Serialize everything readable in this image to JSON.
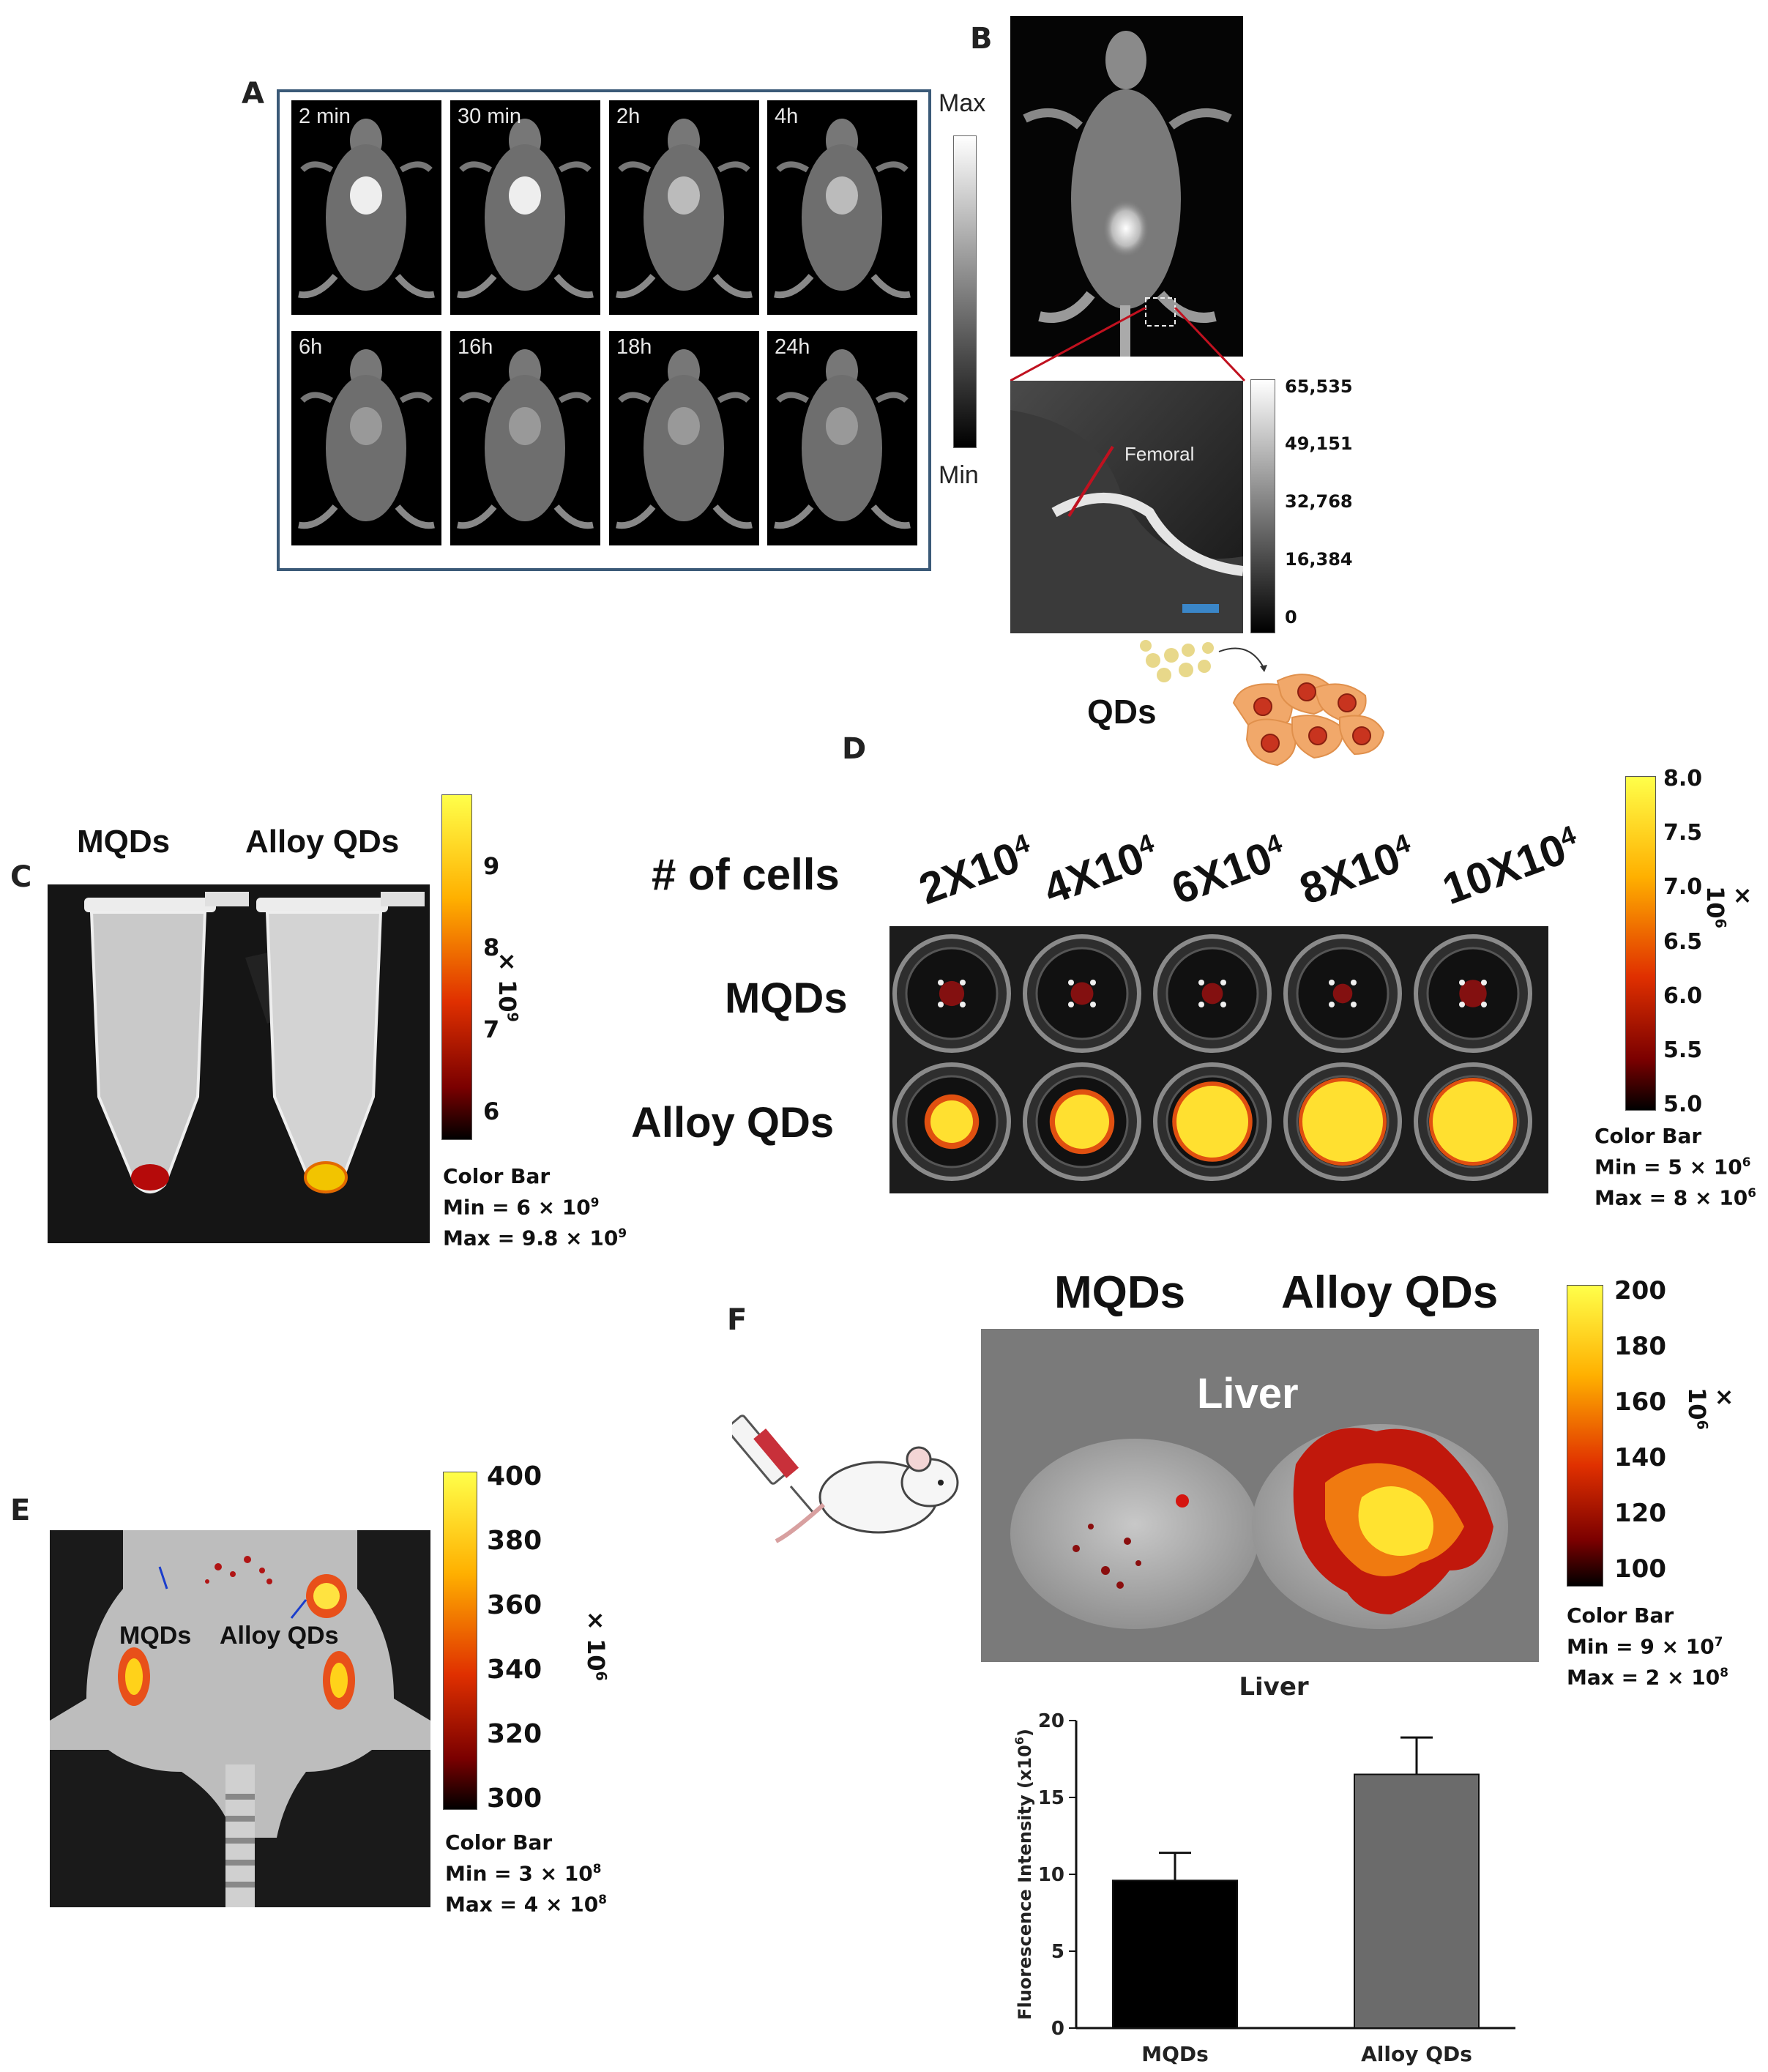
{
  "panels": {
    "A": {
      "letter": "A",
      "timepoints": [
        "2 min",
        "30 min",
        "2h",
        "4h",
        "6h",
        "16h",
        "18h",
        "24h"
      ],
      "scale_max": "Max",
      "scale_min": "Min"
    },
    "B": {
      "letter": "B",
      "vessel_label": "Femoral",
      "colorbar_ticks": [
        "65,535",
        "49,151",
        "32,768",
        "16,384",
        "0"
      ],
      "qds_label": "QDs"
    },
    "C": {
      "letter": "C",
      "col_labels": [
        "MQDs",
        "Alloy QDs"
      ],
      "colorbar_ticks": [
        "9",
        "8",
        "7",
        "6"
      ],
      "multiplier": "× 10",
      "multiplier_exp": "9",
      "cb_title": "Color Bar",
      "cb_min": "Min = 6 × 10",
      "cb_min_exp": "9",
      "cb_max": "Max = 9.8 × 10",
      "cb_max_exp": "9"
    },
    "D": {
      "letter": "D",
      "row_header": "# of cells",
      "col_labels": [
        "2X10",
        "4X10",
        "6X10",
        "8X10",
        "10X10"
      ],
      "col_exp": "4",
      "row_labels": [
        "MQDs",
        "Alloy QDs"
      ],
      "colorbar_ticks": [
        "8.0",
        "7.5",
        "7.0",
        "6.5",
        "6.0",
        "5.5",
        "5.0"
      ],
      "multiplier": "× 10",
      "multiplier_exp": "6",
      "cb_title": "Color Bar",
      "cb_min": "Min = 5 × 10",
      "cb_min_exp": "6",
      "cb_max": "Max = 8 × 10",
      "cb_max_exp": "6"
    },
    "E": {
      "letter": "E",
      "labels": [
        "MQDs",
        "Alloy QDs"
      ],
      "colorbar_ticks": [
        "400",
        "380",
        "360",
        "340",
        "320",
        "300"
      ],
      "multiplier": "× 10",
      "multiplier_exp": "6",
      "cb_title": "Color Bar",
      "cb_min": "Min = 3 × 10",
      "cb_min_exp": "8",
      "cb_max": "Max = 4 × 10",
      "cb_max_exp": "8"
    },
    "F": {
      "letter": "F",
      "col_labels": [
        "MQDs",
        "Alloy QDs"
      ],
      "organ_label": "Liver",
      "colorbar_ticks": [
        "200",
        "180",
        "160",
        "140",
        "120",
        "100"
      ],
      "multiplier": "× 10",
      "multiplier_exp": "6",
      "cb_title": "Color Bar",
      "cb_min": "Min = 9 × 10",
      "cb_min_exp": "7",
      "cb_max": "Max = 2 × 10",
      "cb_max_exp": "8"
    }
  },
  "chart_data": {
    "type": "bar",
    "title": "Liver",
    "categories": [
      "MQDs",
      "Alloy QDs"
    ],
    "values": [
      9.6,
      16.5
    ],
    "errors": [
      1.8,
      2.4
    ],
    "colors": [
      "#000000",
      "#6b6b6b"
    ],
    "ylabel": "Fluorescence Intensity (x10",
    "ylabel_exp": "6",
    "ylabel_end": ")",
    "ylim": [
      0,
      20
    ],
    "yticks": [
      "0",
      "5",
      "10",
      "15",
      "20"
    ],
    "grid": false
  }
}
